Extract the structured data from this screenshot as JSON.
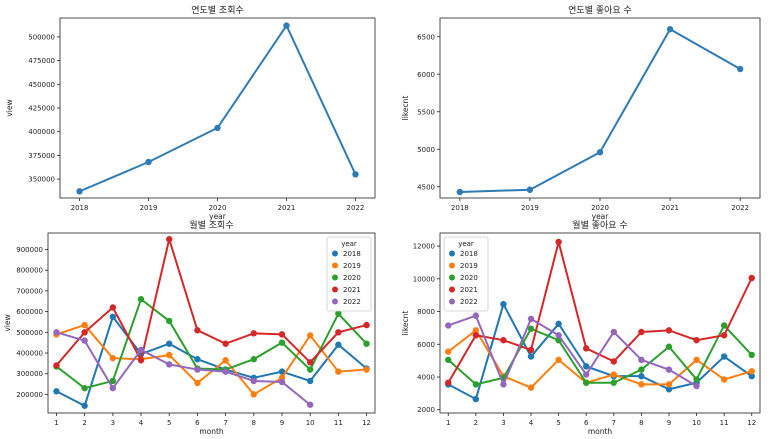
{
  "chart_data": [
    {
      "type": "line",
      "title": "연도별 조회수",
      "xlabel": "year",
      "ylabel": "view",
      "x": [
        "2018",
        "2019",
        "2020",
        "2021",
        "2022"
      ],
      "series": [
        {
          "values": [
            337000,
            368000,
            404000,
            512000,
            355000
          ]
        }
      ],
      "ylim": [
        330000,
        520000
      ],
      "yticks": [
        350000,
        375000,
        400000,
        425000,
        450000,
        475000,
        500000
      ],
      "ytick_labels": [
        "350000",
        "375000",
        "400000",
        "425000",
        "450000",
        "475000",
        "500000"
      ],
      "grid": false,
      "colors": [
        "#2f7bb6"
      ]
    },
    {
      "type": "line",
      "title": "연도별 좋아요 수",
      "xlabel": "year",
      "ylabel": "likecnt",
      "x": [
        "2018",
        "2019",
        "2020",
        "2021",
        "2022"
      ],
      "series": [
        {
          "values": [
            4430,
            4460,
            4960,
            6600,
            6070
          ]
        }
      ],
      "ylim": [
        4350,
        6750
      ],
      "yticks": [
        4500,
        5000,
        5500,
        6000,
        6500
      ],
      "ytick_labels": [
        "4500",
        "5000",
        "5500",
        "6000",
        "6500"
      ],
      "grid": false,
      "colors": [
        "#2f7bb6"
      ]
    },
    {
      "type": "line",
      "title": "월별 조회수",
      "xlabel": "month",
      "ylabel": "view",
      "x": [
        "1",
        "2",
        "3",
        "4",
        "5",
        "6",
        "7",
        "8",
        "9",
        "10",
        "11",
        "12"
      ],
      "legend_title": "year",
      "legend_position": "top-right",
      "series": [
        {
          "name": "2018",
          "color": "#1f77b4",
          "values": [
            215000,
            145000,
            575000,
            395000,
            445000,
            370000,
            320000,
            280000,
            310000,
            265000,
            440000,
            325000
          ]
        },
        {
          "name": "2019",
          "color": "#ff7f0e",
          "values": [
            490000,
            535000,
            375000,
            370000,
            390000,
            255000,
            365000,
            200000,
            280000,
            485000,
            310000,
            320000
          ]
        },
        {
          "name": "2020",
          "color": "#2ca02c",
          "values": [
            335000,
            230000,
            265000,
            660000,
            555000,
            325000,
            320000,
            370000,
            450000,
            320000,
            590000,
            445000
          ]
        },
        {
          "name": "2021",
          "color": "#d62728",
          "values": [
            340000,
            500000,
            620000,
            365000,
            950000,
            510000,
            445000,
            495000,
            490000,
            355000,
            500000,
            535000
          ]
        },
        {
          "name": "2022",
          "color": "#9467bd",
          "values": [
            500000,
            460000,
            230000,
            415000,
            345000,
            320000,
            310000,
            265000,
            260000,
            150000,
            null,
            null
          ]
        }
      ],
      "ylim": [
        110000,
        980000
      ],
      "yticks": [
        200000,
        300000,
        400000,
        500000,
        600000,
        700000,
        800000,
        900000
      ],
      "ytick_labels": [
        "200000",
        "300000",
        "400000",
        "500000",
        "600000",
        "700000",
        "800000",
        "900000"
      ],
      "grid": false
    },
    {
      "type": "line",
      "title": "월별 좋아요 수",
      "xlabel": "month",
      "ylabel": "likecnt",
      "x": [
        "1",
        "2",
        "3",
        "4",
        "5",
        "6",
        "7",
        "8",
        "9",
        "10",
        "11",
        "12"
      ],
      "legend_title": "year",
      "legend_position": "top-left",
      "series": [
        {
          "name": "2018",
          "color": "#1f77b4",
          "values": [
            3550,
            2650,
            8450,
            5250,
            7250,
            4650,
            4050,
            4050,
            3250,
            3650,
            5250,
            4050
          ]
        },
        {
          "name": "2019",
          "color": "#ff7f0e",
          "values": [
            5550,
            6850,
            4050,
            3350,
            5050,
            3650,
            4150,
            3550,
            3550,
            5050,
            3850,
            4350
          ]
        },
        {
          "name": "2020",
          "color": "#2ca02c",
          "values": [
            5050,
            3550,
            3950,
            6950,
            6250,
            3650,
            3650,
            4450,
            5850,
            3850,
            7150,
            5350
          ]
        },
        {
          "name": "2021",
          "color": "#d62728",
          "values": [
            3650,
            6550,
            6250,
            5650,
            12250,
            5750,
            4950,
            6750,
            6850,
            6250,
            6550,
            10050
          ]
        },
        {
          "name": "2022",
          "color": "#9467bd",
          "values": [
            7150,
            7750,
            3550,
            7550,
            6550,
            4150,
            6750,
            5050,
            4450,
            3450,
            null,
            null
          ]
        }
      ],
      "ylim": [
        1800,
        12800
      ],
      "yticks": [
        2000,
        4000,
        6000,
        8000,
        10000,
        12000
      ],
      "ytick_labels": [
        "2000",
        "4000",
        "6000",
        "8000",
        "10000",
        "12000"
      ],
      "grid": false
    }
  ]
}
